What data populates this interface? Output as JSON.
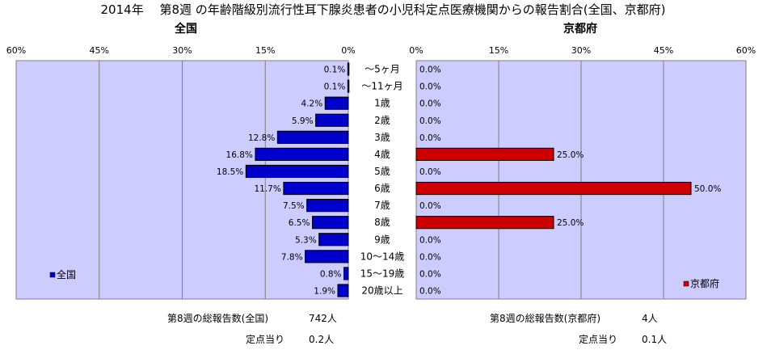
{
  "title": "2014年　 第8週 の年齢階級別流行性耳下腺炎患者の小児科定点医療機関からの報告割合(全国、京都府)",
  "colors": {
    "plot_bg": "#ccccff",
    "national_bar": "#0000cc",
    "kyoto_bar": "#cc0000",
    "grid": "#808080"
  },
  "chart_data": [
    {
      "type": "bar",
      "orientation": "horizontal",
      "direction": "right-to-left",
      "title": "全国",
      "categories": [
        "～5ヶ月",
        "～11ヶ月",
        "1歳",
        "2歳",
        "3歳",
        "4歳",
        "5歳",
        "6歳",
        "7歳",
        "8歳",
        "9歳",
        "10～14歳",
        "15～19歳",
        "20歳以上"
      ],
      "series": [
        {
          "name": "全国",
          "values": [
            0.1,
            0.1,
            4.2,
            5.9,
            12.8,
            16.8,
            18.5,
            11.7,
            7.5,
            6.5,
            5.3,
            7.8,
            0.8,
            1.9
          ]
        }
      ],
      "data_labels": [
        "0.1%",
        "0.1%",
        "4.2%",
        "5.9%",
        "12.8%",
        "16.8%",
        "18.5%",
        "11.7%",
        "7.5%",
        "6.5%",
        "5.3%",
        "7.8%",
        "0.8%",
        "1.9%"
      ],
      "xlim": [
        0,
        60
      ],
      "ticks": [
        "60%",
        "45%",
        "30%",
        "15%",
        "0%"
      ],
      "grid": true,
      "legend_position": "bottom-left"
    },
    {
      "type": "bar",
      "orientation": "horizontal",
      "direction": "left-to-right",
      "title": "京都府",
      "categories": [
        "～5ヶ月",
        "～11ヶ月",
        "1歳",
        "2歳",
        "3歳",
        "4歳",
        "5歳",
        "6歳",
        "7歳",
        "8歳",
        "9歳",
        "10～14歳",
        "15～19歳",
        "20歳以上"
      ],
      "series": [
        {
          "name": "京都府",
          "values": [
            0,
            0,
            0,
            0,
            0,
            25,
            0,
            50,
            0,
            25,
            0,
            0,
            0,
            0
          ]
        }
      ],
      "data_labels": [
        "0.0%",
        "0.0%",
        "0.0%",
        "0.0%",
        "0.0%",
        "25.0%",
        "0.0%",
        "50.0%",
        "0.0%",
        "25.0%",
        "0.0%",
        "0.0%",
        "0.0%",
        "0.0%"
      ],
      "xlim": [
        0,
        60
      ],
      "ticks": [
        "0%",
        "15%",
        "30%",
        "45%",
        "60%"
      ],
      "grid": true,
      "legend_position": "bottom-right"
    }
  ],
  "footer": {
    "national": {
      "label": "第8週の総報告数(全国)",
      "value": "742人",
      "per_label": "定点当り",
      "per_value": "0.2人"
    },
    "kyoto": {
      "label": "第8週の総報告数(京都府)",
      "value": "4人",
      "per_label": "定点当り",
      "per_value": "0.1人"
    }
  }
}
